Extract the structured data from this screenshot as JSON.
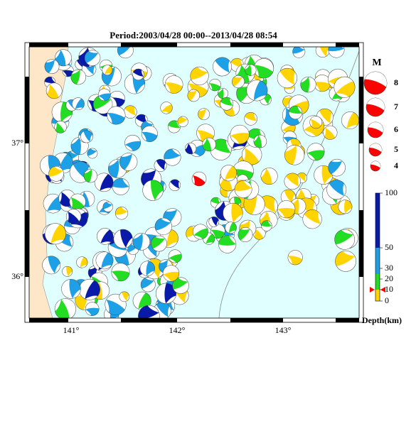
{
  "title": "Period:2003/04/28 00:00--2013/04/28 08:54",
  "map": {
    "lon_labels": [
      "141°",
      "142°",
      "143°"
    ],
    "lat_labels": [
      "37°",
      "36°"
    ]
  },
  "magnitude_legend": {
    "title": "M",
    "labels": [
      "8",
      "7",
      "6",
      "5",
      "4"
    ]
  },
  "depth_scale": {
    "title": "Depth(km)",
    "labels": [
      "100",
      "50",
      "30",
      "20",
      "10",
      "0"
    ]
  }
}
